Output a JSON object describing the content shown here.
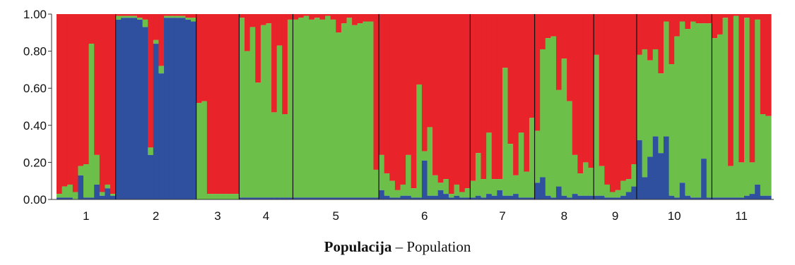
{
  "chart_data": {
    "type": "bar",
    "subtype": "stacked-100",
    "ylim": [
      0,
      1
    ],
    "yticks": [
      "0.00",
      "0.20",
      "0.40",
      "0.60",
      "0.80",
      "1.00"
    ],
    "xlabel_bold": "Populacija",
    "xlabel_rest": " – Population",
    "ylabel": "",
    "title": "",
    "grid": false,
    "legend": "none",
    "colors": {
      "blue": "#2f4f9f",
      "green": "#6cc04a",
      "red": "#e8232a"
    },
    "populations": [
      {
        "label": "1",
        "individuals": [
          [
            0.01,
            0.02
          ],
          [
            0.01,
            0.06
          ],
          [
            0.01,
            0.07
          ],
          [
            0.0,
            0.04
          ],
          [
            0.13,
            0.05
          ],
          [
            0.01,
            0.18
          ],
          [
            0.01,
            0.83
          ],
          [
            0.08,
            0.16
          ],
          [
            0.02,
            0.02
          ],
          [
            0.06,
            0.02
          ],
          [
            0.02,
            0.01
          ]
        ]
      },
      {
        "label": "2",
        "individuals": [
          [
            0.97,
            0.02
          ],
          [
            0.98,
            0.01
          ],
          [
            0.98,
            0.01
          ],
          [
            0.98,
            0.01
          ],
          [
            0.97,
            0.01
          ],
          [
            0.93,
            0.04
          ],
          [
            0.24,
            0.04
          ],
          [
            0.84,
            0.02
          ],
          [
            0.68,
            0.04
          ],
          [
            0.98,
            0.01
          ],
          [
            0.98,
            0.01
          ],
          [
            0.98,
            0.01
          ],
          [
            0.98,
            0.01
          ],
          [
            0.97,
            0.01
          ],
          [
            0.96,
            0.02
          ]
        ]
      },
      {
        "label": "3",
        "individuals": [
          [
            0.0,
            0.52
          ],
          [
            0.0,
            0.53
          ],
          [
            0.0,
            0.03
          ],
          [
            0.0,
            0.03
          ],
          [
            0.0,
            0.03
          ],
          [
            0.0,
            0.03
          ],
          [
            0.0,
            0.03
          ],
          [
            0.0,
            0.03
          ]
        ]
      },
      {
        "label": "4",
        "individuals": [
          [
            0.01,
            0.97
          ],
          [
            0.01,
            0.79
          ],
          [
            0.01,
            0.92
          ],
          [
            0.01,
            0.62
          ],
          [
            0.01,
            0.93
          ],
          [
            0.01,
            0.94
          ],
          [
            0.01,
            0.46
          ],
          [
            0.01,
            0.82
          ],
          [
            0.01,
            0.45
          ],
          [
            0.01,
            0.96
          ]
        ]
      },
      {
        "label": "5",
        "individuals": [
          [
            0.01,
            0.96
          ],
          [
            0.01,
            0.97
          ],
          [
            0.01,
            0.98
          ],
          [
            0.01,
            0.96
          ],
          [
            0.01,
            0.97
          ],
          [
            0.01,
            0.96
          ],
          [
            0.01,
            0.98
          ],
          [
            0.01,
            0.96
          ],
          [
            0.01,
            0.89
          ],
          [
            0.01,
            0.94
          ],
          [
            0.01,
            0.97
          ],
          [
            0.01,
            0.93
          ],
          [
            0.01,
            0.94
          ],
          [
            0.01,
            0.95
          ],
          [
            0.01,
            0.95
          ],
          [
            0.01,
            0.15
          ]
        ]
      },
      {
        "label": "6",
        "individuals": [
          [
            0.05,
            0.19
          ],
          [
            0.02,
            0.12
          ],
          [
            0.01,
            0.09
          ],
          [
            0.01,
            0.04
          ],
          [
            0.02,
            0.06
          ],
          [
            0.02,
            0.22
          ],
          [
            0.01,
            0.05
          ],
          [
            0.01,
            0.61
          ],
          [
            0.21,
            0.05
          ],
          [
            0.02,
            0.37
          ],
          [
            0.02,
            0.11
          ],
          [
            0.05,
            0.04
          ],
          [
            0.03,
            0.08
          ],
          [
            0.01,
            0.02
          ],
          [
            0.02,
            0.06
          ],
          [
            0.01,
            0.03
          ],
          [
            0.01,
            0.05
          ]
        ]
      },
      {
        "label": "7",
        "individuals": [
          [
            0.01,
            0.09
          ],
          [
            0.02,
            0.23
          ],
          [
            0.01,
            0.1
          ],
          [
            0.03,
            0.33
          ],
          [
            0.02,
            0.09
          ],
          [
            0.05,
            0.06
          ],
          [
            0.02,
            0.69
          ],
          [
            0.02,
            0.28
          ],
          [
            0.03,
            0.1
          ],
          [
            0.01,
            0.35
          ],
          [
            0.01,
            0.14
          ],
          [
            0.01,
            0.43
          ]
        ]
      },
      {
        "label": "8",
        "individuals": [
          [
            0.09,
            0.28
          ],
          [
            0.12,
            0.69
          ],
          [
            0.02,
            0.85
          ],
          [
            0.01,
            0.87
          ],
          [
            0.07,
            0.52
          ],
          [
            0.02,
            0.74
          ],
          [
            0.01,
            0.52
          ],
          [
            0.03,
            0.21
          ],
          [
            0.02,
            0.12
          ],
          [
            0.02,
            0.18
          ],
          [
            0.02,
            0.15
          ]
        ]
      },
      {
        "label": "9",
        "individuals": [
          [
            0.02,
            0.76
          ],
          [
            0.02,
            0.16
          ],
          [
            0.01,
            0.07
          ],
          [
            0.01,
            0.03
          ],
          [
            0.01,
            0.04
          ],
          [
            0.02,
            0.08
          ],
          [
            0.04,
            0.07
          ],
          [
            0.07,
            0.12
          ]
        ]
      },
      {
        "label": "10",
        "individuals": [
          [
            0.32,
            0.46
          ],
          [
            0.12,
            0.69
          ],
          [
            0.23,
            0.52
          ],
          [
            0.34,
            0.47
          ],
          [
            0.25,
            0.43
          ],
          [
            0.34,
            0.62
          ],
          [
            0.02,
            0.71
          ],
          [
            0.01,
            0.87
          ],
          [
            0.09,
            0.87
          ],
          [
            0.02,
            0.9
          ],
          [
            0.01,
            0.95
          ],
          [
            0.01,
            0.94
          ],
          [
            0.22,
            0.73
          ],
          [
            0.01,
            0.94
          ]
        ]
      },
      {
        "label": "11",
        "individuals": [
          [
            0.01,
            0.86
          ],
          [
            0.01,
            0.88
          ],
          [
            0.01,
            0.97
          ],
          [
            0.01,
            0.17
          ],
          [
            0.01,
            0.98
          ],
          [
            0.01,
            0.19
          ],
          [
            0.02,
            0.96
          ],
          [
            0.03,
            0.17
          ],
          [
            0.08,
            0.89
          ],
          [
            0.02,
            0.44
          ],
          [
            0.02,
            0.43
          ]
        ]
      }
    ]
  }
}
